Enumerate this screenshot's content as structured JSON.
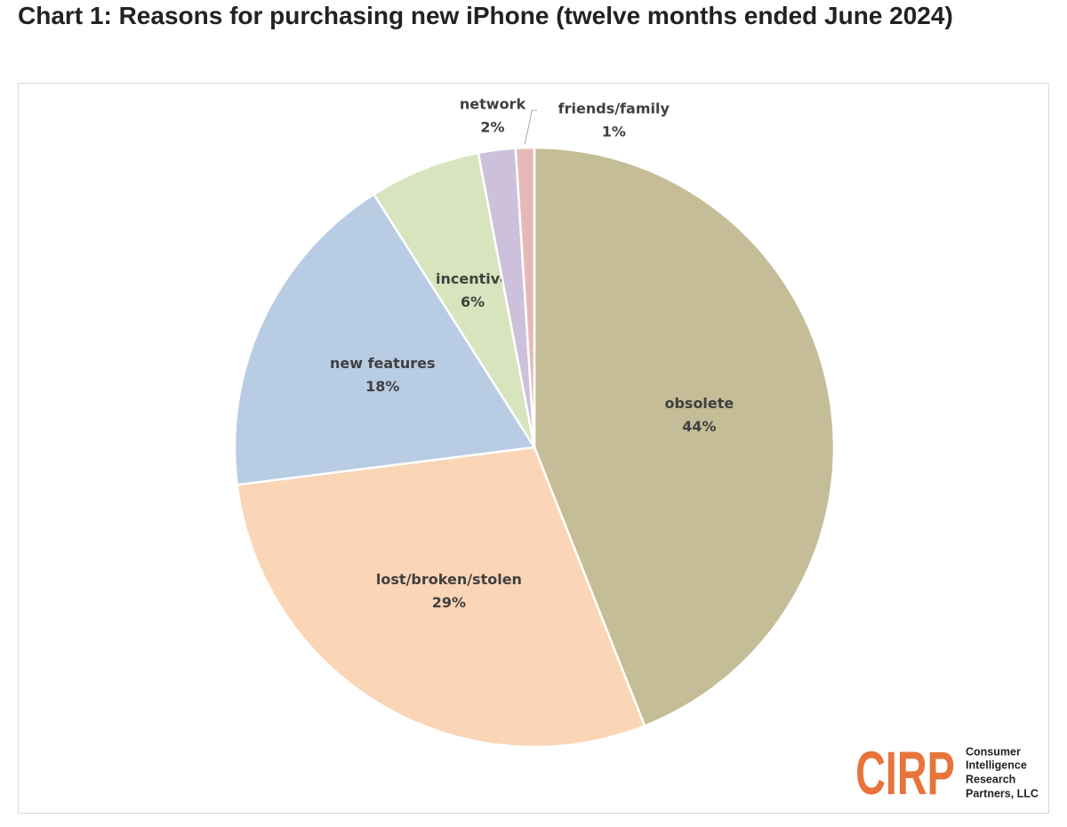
{
  "chart_data": {
    "type": "pie",
    "title": "Chart 1: Reasons for purchasing new iPhone (twelve months ended June 2024)",
    "categories": [
      "obsolete",
      "lost/broken/stolen",
      "new features",
      "incentive",
      "network",
      "friends/family"
    ],
    "values": [
      44,
      29,
      18,
      6,
      2,
      1
    ],
    "value_labels": [
      "44%",
      "29%",
      "18%",
      "6%",
      "2%",
      "1%"
    ],
    "colors": [
      "#c4bd97",
      "#fad5b6",
      "#b8cce4",
      "#d7e4bd",
      "#ccc0da",
      "#e6b9b8"
    ]
  },
  "logo": {
    "mark": "CIRP",
    "lines": [
      "Consumer",
      "Intelligence",
      "Research",
      "Partners, LLC"
    ]
  }
}
